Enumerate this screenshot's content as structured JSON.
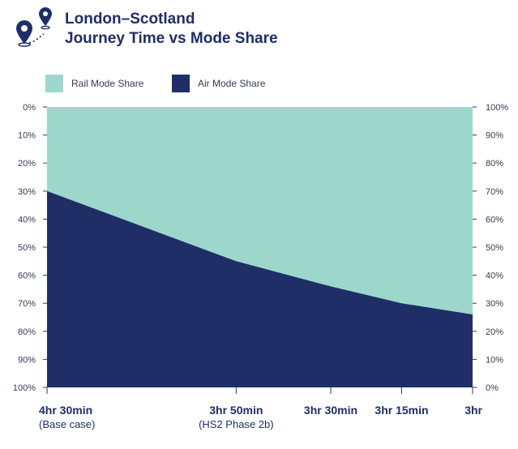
{
  "header": {
    "title_line1": "London–Scotland",
    "title_line2": "Journey Time vs Mode Share",
    "icon": "map-route-pins-icon"
  },
  "colors": {
    "rail": "#9dd7cb",
    "air": "#1f2e66",
    "text": "#1f2e66"
  },
  "chart_data": {
    "type": "area",
    "title": "London–Scotland Journey Time vs Mode Share",
    "stacked": true,
    "categories": [
      {
        "label": "4hr 30min",
        "sublabel": "(Base case)",
        "minutes": 270
      },
      {
        "label": "3hr 50min",
        "sublabel": "(HS2 Phase 2b)",
        "minutes": 230
      },
      {
        "label": "3hr 30min",
        "sublabel": "",
        "minutes": 210
      },
      {
        "label": "3hr 15min",
        "sublabel": "",
        "minutes": 195
      },
      {
        "label": "3hr",
        "sublabel": "",
        "minutes": 180
      }
    ],
    "series": [
      {
        "name": "Rail Mode Share",
        "color": "#9dd7cb",
        "values": [
          30,
          55,
          64,
          70,
          74
        ],
        "axis": "left-inverted"
      },
      {
        "name": "Air Mode Share",
        "color": "#1f2e66",
        "values": [
          70,
          45,
          36,
          30,
          26
        ],
        "axis": "right"
      }
    ],
    "left_axis": {
      "ticks": [
        "0%",
        "10%",
        "20%",
        "30%",
        "40%",
        "50%",
        "60%",
        "70%",
        "80%",
        "90%",
        "100%"
      ],
      "inverted": true,
      "range": [
        0,
        100
      ]
    },
    "right_axis": {
      "ticks": [
        "100%",
        "90%",
        "80%",
        "70%",
        "60%",
        "50%",
        "40%",
        "30%",
        "20%",
        "10%",
        "0%"
      ],
      "range": [
        0,
        100
      ]
    },
    "legend_position": "top-left",
    "grid": false
  }
}
